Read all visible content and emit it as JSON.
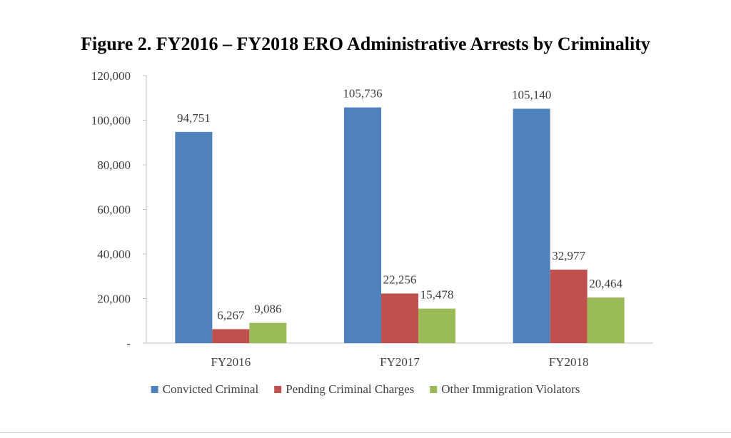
{
  "chart_data": {
    "type": "bar",
    "title": "Figure 2. FY2016 – FY2018 ERO Administrative Arrests by Criminality",
    "categories": [
      "FY2016",
      "FY2017",
      "FY2018"
    ],
    "series": [
      {
        "name": "Convicted Criminal",
        "color": "#4F81BD",
        "values": [
          94751,
          105736,
          105140
        ],
        "labels": [
          "94,751",
          "105,736",
          "105,140"
        ]
      },
      {
        "name": "Pending Criminal Charges",
        "color": "#C0504D",
        "values": [
          6267,
          22256,
          32977
        ],
        "labels": [
          "6,267",
          "22,256",
          "32,977"
        ]
      },
      {
        "name": "Other Immigration Violators",
        "color": "#9BBB59",
        "values": [
          9086,
          15478,
          20464
        ],
        "labels": [
          "9,086",
          "15,478",
          "20,464"
        ]
      }
    ],
    "ylim": [
      0,
      120000
    ],
    "yticks": [
      0,
      20000,
      40000,
      60000,
      80000,
      100000,
      120000
    ],
    "ytick_labels": [
      "-",
      "20,000",
      "40,000",
      "60,000",
      "80,000",
      "100,000",
      "120,000"
    ],
    "xlabel": "",
    "ylabel": "",
    "grid": false,
    "legend_position": "bottom"
  }
}
